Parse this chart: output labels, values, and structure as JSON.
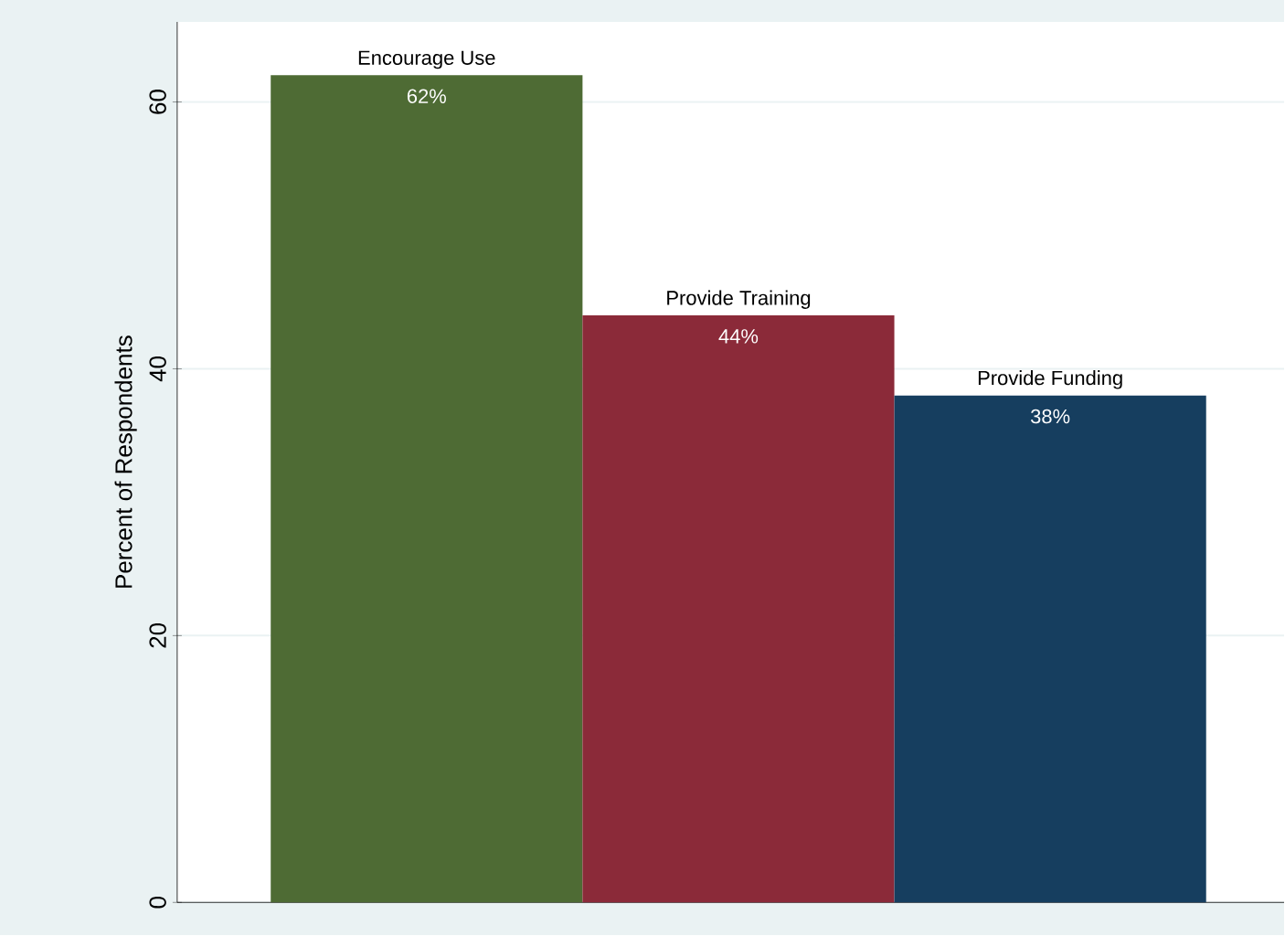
{
  "chart_data": {
    "type": "bar",
    "ylabel": "Percent of Respondents",
    "categories": [
      "Encourage Use",
      "Provide Training",
      "Provide Funding"
    ],
    "values": [
      62,
      44,
      38
    ],
    "colors": [
      "#4e6b34",
      "#8b2a39",
      "#163e5f"
    ],
    "value_labels": [
      "62%",
      "44%",
      "38%"
    ],
    "ylim": [
      0,
      66
    ],
    "yticks": [
      0,
      20,
      40,
      60
    ],
    "grid": "y",
    "tick_labels": "y"
  }
}
